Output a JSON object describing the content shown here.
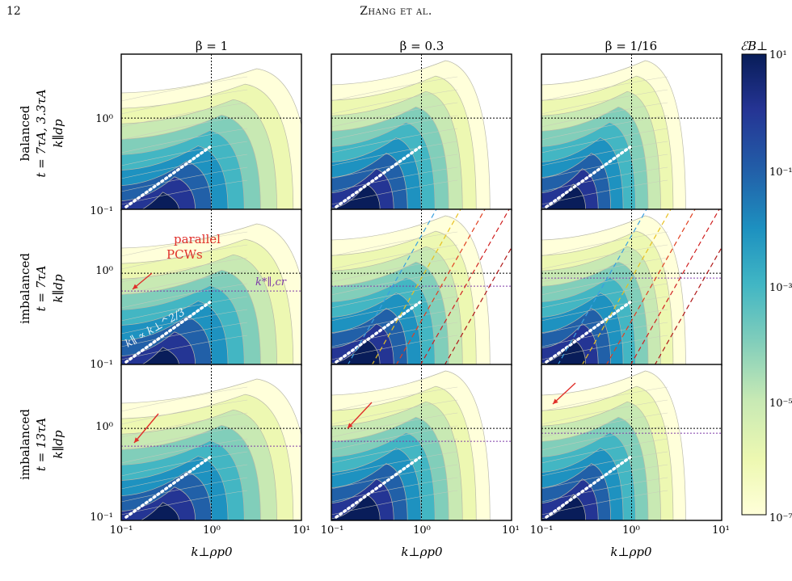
{
  "header": {
    "page_number": "12",
    "running_title": "Zhang et al."
  },
  "columns": [
    {
      "label": "β = 1"
    },
    {
      "label": "β = 0.3"
    },
    {
      "label": "β = 1/16"
    }
  ],
  "rows": [
    {
      "line1": "balanced",
      "line2": "t = 7τA, 3.3τA",
      "line3": "k∥dp"
    },
    {
      "line1": "imbalanced",
      "line2": "t = 7τA",
      "line3": "k∥dp"
    },
    {
      "line1": "imbalanced",
      "line2": "t = 13τA",
      "line3": "k∥dp"
    }
  ],
  "axes": {
    "x_label": "k⊥ρp0",
    "y_ticks": [
      "10⁰",
      "10⁻¹"
    ],
    "x_ticks": [
      "10⁻¹",
      "10⁰",
      "10¹"
    ]
  },
  "annotations": {
    "pcw_line1": "parallel",
    "pcw_line2": "PCWs",
    "kcr": "k*∥,cr",
    "slope": "k∥ ∝ k⊥^2/3"
  },
  "colorbar": {
    "label": "ℰB⊥",
    "ticks": [
      "10¹",
      "10⁻¹",
      "10⁻³",
      "10⁻⁵",
      "10⁻⁷"
    ],
    "colors": [
      "#ffffd9",
      "#edf8b1",
      "#c7e9b4",
      "#7fcdbb",
      "#41b6c4",
      "#1d91c0",
      "#225ea8",
      "#253494",
      "#081d58"
    ]
  },
  "colors": {
    "annotation_red": "#e0302a",
    "annotation_purple": "#7d3aa8",
    "slope_line": "#ffffff"
  }
}
